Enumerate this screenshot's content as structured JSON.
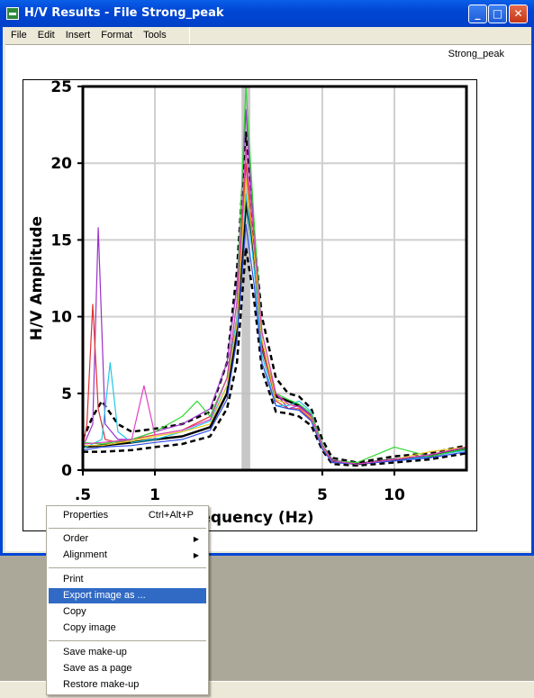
{
  "window": {
    "title": "H/V Results - File Strong_peak",
    "minimize_symbol": "_",
    "maximize_symbol": "□",
    "close_symbol": "✕"
  },
  "menu": [
    "File",
    "Edit",
    "Insert",
    "Format",
    "Tools"
  ],
  "document_label": "Strong_peak",
  "context_menu": {
    "properties": "Properties",
    "properties_shortcut": "Ctrl+Alt+P",
    "order": "Order",
    "alignment": "Alignment",
    "print": "Print",
    "export": "Export image as ...",
    "copy": "Copy",
    "copy_image": "Copy image",
    "save_makeup": "Save make-up",
    "save_page": "Save as a page",
    "restore_makeup": "Restore make-up"
  },
  "chart_data": {
    "type": "line",
    "title": "",
    "xlabel": "Frequency (Hz)",
    "ylabel": "H/V Amplitude",
    "x_scale": "log",
    "xlim": [
      0.5,
      20
    ],
    "ylim": [
      0,
      25
    ],
    "x_ticks": [
      0.5,
      1,
      5,
      10
    ],
    "x_tick_labels": [
      ".5",
      "1",
      "5",
      "10"
    ],
    "y_ticks": [
      0,
      5,
      10,
      15,
      20,
      25
    ],
    "y_tick_labels": [
      "0",
      "5",
      "10",
      "15",
      "20",
      "25"
    ],
    "grid": true,
    "peak_band": [
      2.3,
      2.5
    ],
    "series": [
      {
        "color": "#000000",
        "style": "solid",
        "x": [
          0.5,
          0.6,
          0.8,
          1,
          1.3,
          1.7,
          2,
          2.2,
          2.4,
          2.6,
          2.8,
          3.2,
          3.6,
          4,
          4.5,
          5,
          5.5,
          7,
          10,
          14,
          20
        ],
        "y": [
          1.5,
          1.6,
          1.8,
          2,
          2.2,
          2.8,
          5,
          9,
          17.5,
          14,
          8,
          4.8,
          4.5,
          4.2,
          3.5,
          1.6,
          0.6,
          0.4,
          0.7,
          0.9,
          1.4
        ]
      },
      {
        "color": "#000000",
        "style": "dashed",
        "x": [
          0.5,
          0.55,
          0.6,
          0.7,
          0.8,
          1,
          1.3,
          1.7,
          2,
          2.2,
          2.4,
          2.6,
          2.8,
          3.2,
          3.6,
          4,
          4.5,
          5,
          5.5,
          7,
          10,
          14,
          20
        ],
        "y": [
          2,
          3.5,
          4.5,
          3,
          2.5,
          2.7,
          3,
          3.8,
          7,
          13,
          22,
          15,
          10,
          6,
          5,
          4.8,
          4,
          2,
          0.8,
          0.5,
          0.9,
          1.1,
          1.6
        ]
      },
      {
        "color": "#000000",
        "style": "dashed",
        "x": [
          0.5,
          0.6,
          0.8,
          1,
          1.3,
          1.7,
          2,
          2.2,
          2.4,
          2.6,
          2.8,
          3.2,
          3.6,
          4,
          4.5,
          5,
          5.5,
          7,
          10,
          14,
          20
        ],
        "y": [
          1.2,
          1.2,
          1.3,
          1.5,
          1.7,
          2.2,
          4,
          7,
          14.5,
          11,
          6.5,
          3.8,
          3.7,
          3.5,
          2.9,
          1.3,
          0.4,
          0.3,
          0.5,
          0.7,
          1.1
        ]
      },
      {
        "color": "#9B30C8",
        "style": "solid",
        "x": [
          0.5,
          0.55,
          0.58,
          0.62,
          0.7,
          0.8,
          1,
          1.3,
          1.7,
          2,
          2.2,
          2.4,
          2.6,
          2.8,
          3.2,
          3.6,
          4,
          4.5,
          5,
          5.5,
          7,
          10,
          14,
          20
        ],
        "y": [
          1.5,
          3,
          15.8,
          3,
          2,
          2,
          2.5,
          3,
          4,
          7,
          12,
          23.5,
          15,
          8,
          5,
          4,
          4.2,
          3.6,
          1.5,
          0.5,
          0.4,
          0.7,
          1,
          1.5
        ]
      },
      {
        "color": "#E03030",
        "style": "solid",
        "x": [
          0.5,
          0.52,
          0.55,
          0.58,
          0.62,
          0.7,
          0.8,
          1,
          1.3,
          1.7,
          2,
          2.2,
          2.4,
          2.6,
          2.8,
          3.2,
          3.6,
          4,
          4.5,
          5,
          5.5,
          7,
          10,
          14,
          20
        ],
        "y": [
          1.5,
          3,
          10.8,
          4,
          2,
          1.8,
          2,
          2.3,
          2.6,
          3.5,
          6,
          10,
          20,
          14,
          8,
          4.5,
          4,
          4,
          3.3,
          1.4,
          0.5,
          0.4,
          0.6,
          0.9,
          1.3
        ]
      },
      {
        "color": "#20C8E8",
        "style": "solid",
        "x": [
          0.5,
          0.6,
          0.65,
          0.7,
          0.8,
          1,
          1.3,
          1.7,
          2,
          2.2,
          2.4,
          2.6,
          2.8,
          3.2,
          3.6,
          4,
          4.5,
          5,
          5.5,
          7,
          10,
          14,
          20
        ],
        "y": [
          1.4,
          2,
          7,
          2.5,
          1.8,
          2,
          2.5,
          3.2,
          5.5,
          10,
          18,
          13,
          7.5,
          4.2,
          4.2,
          4.5,
          3.8,
          1.5,
          0.5,
          0.4,
          0.6,
          0.9,
          1.3
        ]
      },
      {
        "color": "#30D830",
        "style": "solid",
        "x": [
          0.5,
          0.6,
          0.8,
          1,
          1.3,
          1.5,
          1.7,
          2,
          2.2,
          2.4,
          2.6,
          2.8,
          3.2,
          3.6,
          4,
          4.5,
          5,
          5.5,
          7,
          10,
          14,
          20
        ],
        "y": [
          1.8,
          1.7,
          2,
          2.5,
          3.5,
          4.5,
          3.5,
          6,
          11,
          25,
          16,
          9,
          5,
          4.6,
          4.3,
          3.7,
          1.7,
          0.6,
          0.5,
          1.5,
          0.9,
          1.4
        ]
      },
      {
        "color": "#E8C820",
        "style": "solid",
        "x": [
          0.5,
          0.6,
          0.8,
          1,
          1.3,
          1.7,
          2,
          2.2,
          2.4,
          2.6,
          2.8,
          3.2,
          3.6,
          4,
          4.5,
          5,
          5.5,
          7,
          10,
          14,
          20
        ],
        "y": [
          1.6,
          1.6,
          1.9,
          2.2,
          2.5,
          3,
          5.5,
          9.5,
          19,
          14,
          8.5,
          4.6,
          4.3,
          4.1,
          3.4,
          1.5,
          0.5,
          0.4,
          0.7,
          1.2,
          1.5
        ]
      },
      {
        "color": "#3050E8",
        "style": "solid",
        "x": [
          0.5,
          0.6,
          0.8,
          1,
          1.3,
          1.7,
          2,
          2.2,
          2.4,
          2.6,
          2.8,
          3.2,
          3.6,
          4,
          4.5,
          5,
          5.5,
          7,
          10,
          14,
          20
        ],
        "y": [
          1.3,
          1.5,
          1.6,
          1.8,
          2,
          2.6,
          4.6,
          8.5,
          16,
          12,
          7,
          4.2,
          4,
          3.9,
          3.2,
          1.4,
          0.5,
          0.4,
          0.6,
          0.8,
          1.2
        ]
      },
      {
        "color": "#E040C0",
        "style": "solid",
        "x": [
          0.5,
          0.6,
          0.8,
          0.9,
          1,
          1.3,
          1.7,
          2,
          2.2,
          2.4,
          2.6,
          2.8,
          3.2,
          3.6,
          4,
          4.5,
          5,
          5.5,
          7,
          10,
          14,
          20
        ],
        "y": [
          1.7,
          1.8,
          2,
          5.5,
          2.3,
          2.6,
          3.3,
          6,
          11,
          21,
          15,
          9,
          5,
          4.3,
          4.1,
          3.5,
          1.6,
          0.6,
          0.4,
          0.7,
          1,
          1.5
        ]
      }
    ]
  }
}
